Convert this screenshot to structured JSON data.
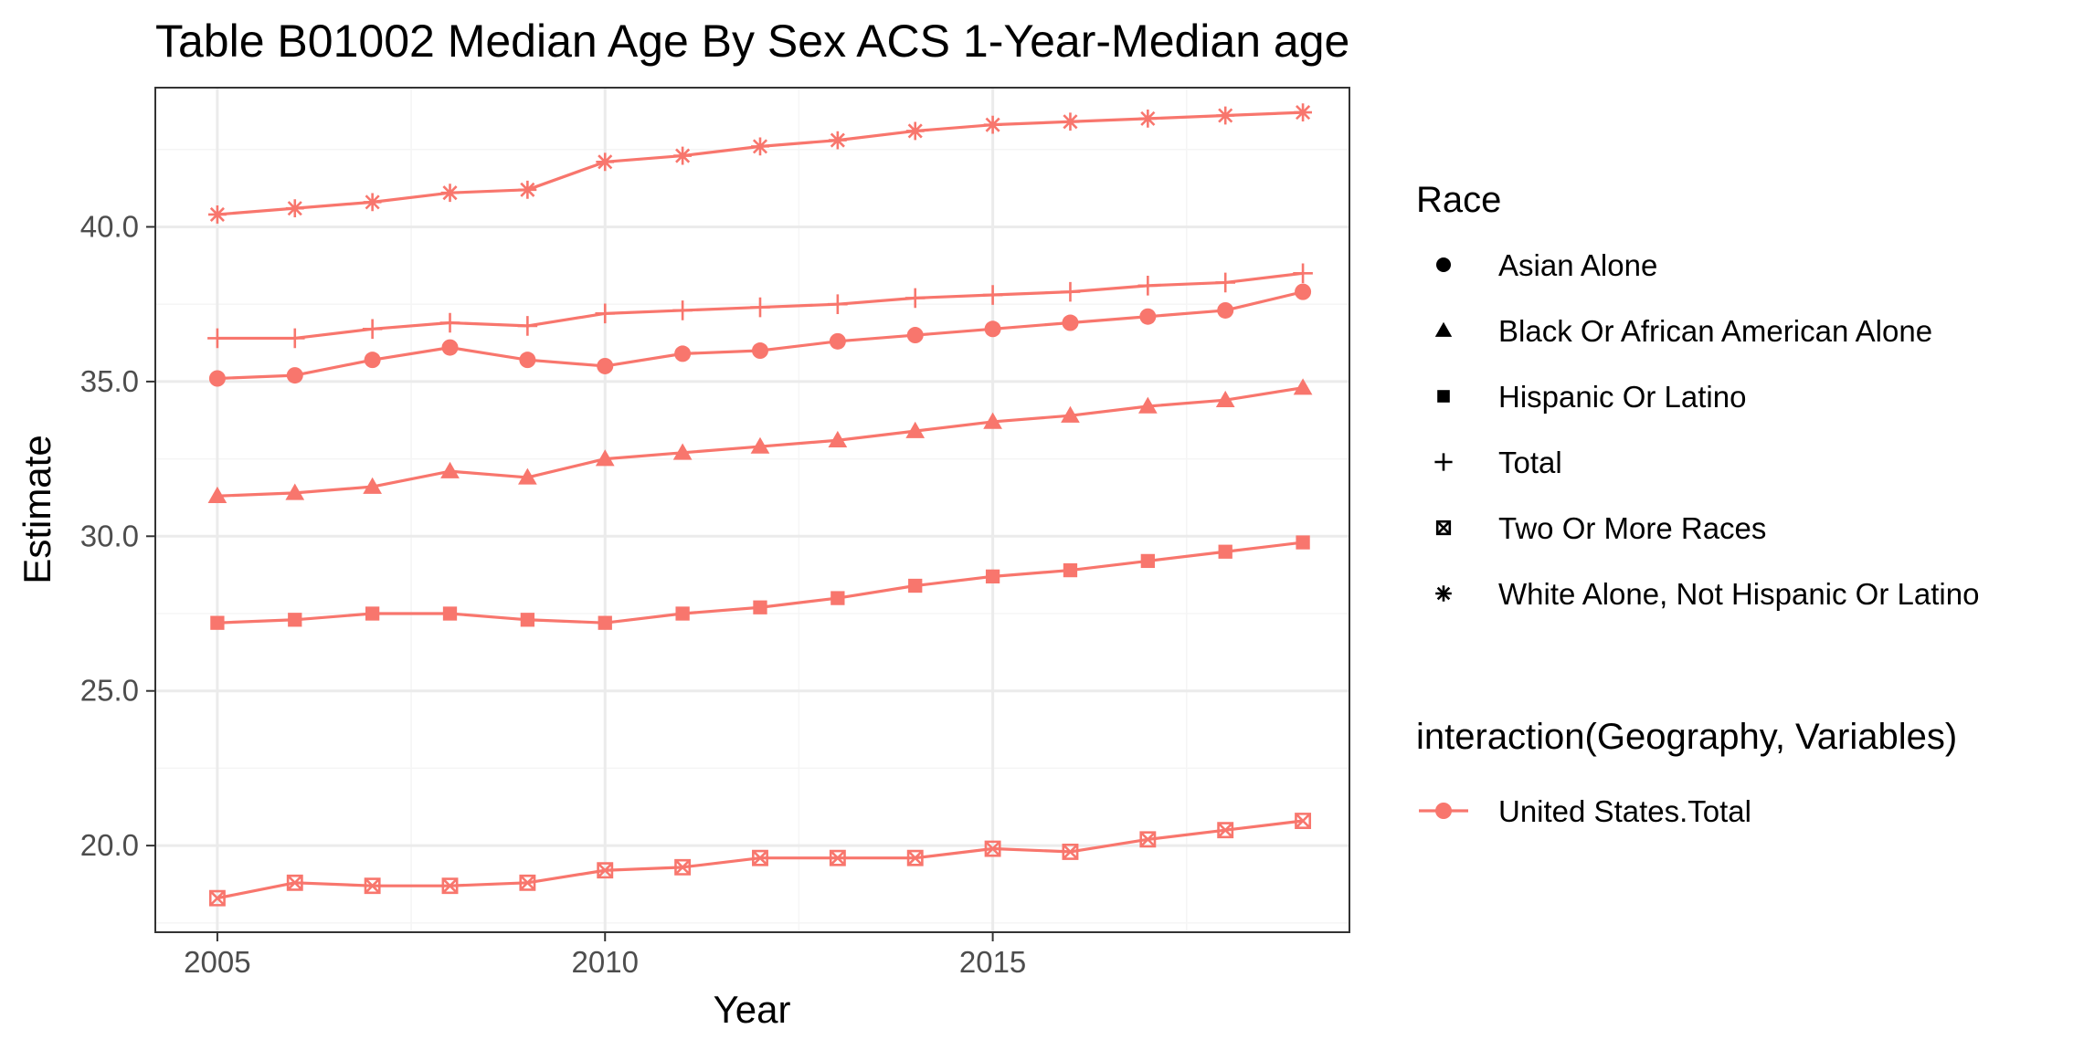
{
  "chart_data": {
    "type": "line",
    "title": "Table B01002 Median Age By Sex ACS 1-Year-Median age",
    "xlabel": "Year",
    "ylabel": "Estimate",
    "xlim": [
      2004.2,
      2019.6
    ],
    "ylim": [
      17.2,
      44.5
    ],
    "x_ticks": [
      2005,
      2010,
      2015
    ],
    "x_tick_labels": [
      "2005",
      "2010",
      "2015"
    ],
    "y_ticks": [
      20,
      25,
      30,
      35,
      40
    ],
    "y_tick_labels": [
      "20.0",
      "25.0",
      "30.0",
      "35.0",
      "40.0"
    ],
    "grid": true,
    "line_color": "#F8766D",
    "x": [
      2005,
      2006,
      2007,
      2008,
      2009,
      2010,
      2011,
      2012,
      2013,
      2014,
      2015,
      2016,
      2017,
      2018,
      2019
    ],
    "series": [
      {
        "name": "White Alone, Not Hispanic Or Latino",
        "marker": "asterisk",
        "values": [
          40.4,
          40.6,
          40.8,
          41.1,
          41.2,
          42.1,
          42.3,
          42.6,
          42.8,
          43.1,
          43.3,
          43.4,
          43.5,
          43.6,
          43.7
        ]
      },
      {
        "name": "Total",
        "marker": "plus",
        "values": [
          36.4,
          36.4,
          36.7,
          36.9,
          36.8,
          37.2,
          37.3,
          37.4,
          37.5,
          37.7,
          37.8,
          37.9,
          38.1,
          38.2,
          38.5
        ]
      },
      {
        "name": "Asian Alone",
        "marker": "circle",
        "values": [
          35.1,
          35.2,
          35.7,
          36.1,
          35.7,
          35.5,
          35.9,
          36.0,
          36.3,
          36.5,
          36.7,
          36.9,
          37.1,
          37.3,
          37.9
        ]
      },
      {
        "name": "Black Or African American Alone",
        "marker": "triangle",
        "values": [
          31.3,
          31.4,
          31.6,
          32.1,
          31.9,
          32.5,
          32.7,
          32.9,
          33.1,
          33.4,
          33.7,
          33.9,
          34.2,
          34.4,
          34.8
        ]
      },
      {
        "name": "Hispanic Or Latino",
        "marker": "square",
        "values": [
          27.2,
          27.3,
          27.5,
          27.5,
          27.3,
          27.2,
          27.5,
          27.7,
          28.0,
          28.4,
          28.7,
          28.9,
          29.2,
          29.5,
          29.8
        ]
      },
      {
        "name": "Two Or More Races",
        "marker": "boxx",
        "values": [
          18.3,
          18.8,
          18.7,
          18.7,
          18.8,
          19.2,
          19.3,
          19.6,
          19.6,
          19.6,
          19.9,
          19.8,
          20.2,
          20.5,
          20.8
        ]
      }
    ],
    "legend": {
      "placement": "right",
      "race_title": "Race",
      "race_items": [
        {
          "label": "Asian Alone",
          "marker": "circle"
        },
        {
          "label": "Black Or African American Alone",
          "marker": "triangle"
        },
        {
          "label": "Hispanic Or Latino",
          "marker": "square"
        },
        {
          "label": "Total",
          "marker": "plus"
        },
        {
          "label": "Two Or More Races",
          "marker": "boxx"
        },
        {
          "label": "White Alone, Not Hispanic Or Latino",
          "marker": "asterisk"
        }
      ],
      "interaction_title": "interaction(Geography, Variables)",
      "interaction_items": [
        {
          "label": "United States.Total",
          "marker": "circle-line"
        }
      ]
    }
  }
}
